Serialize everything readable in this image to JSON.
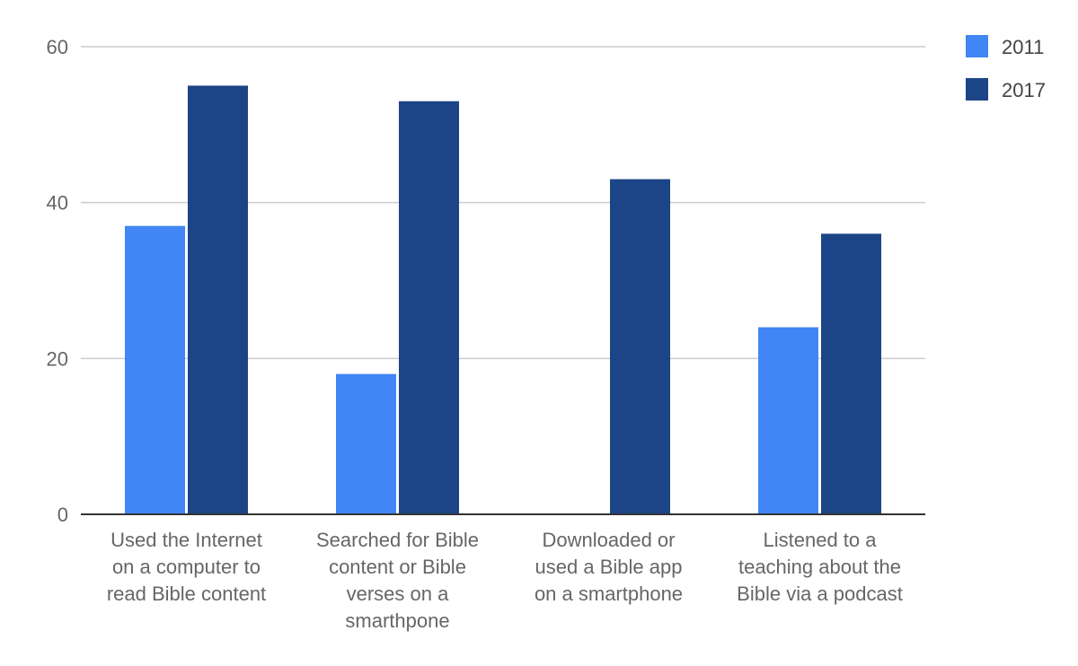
{
  "chart_data": {
    "type": "bar",
    "categories": [
      [
        "Used the Internet",
        "on a computer to",
        "read Bible content"
      ],
      [
        "Searched for Bible",
        "content or Bible",
        "verses on a",
        "smarthpone"
      ],
      [
        "Downloaded or",
        "used a Bible app",
        "on a smartphone"
      ],
      [
        "Listened to a",
        "teaching about the",
        "Bible via a podcast"
      ]
    ],
    "series": [
      {
        "name": "2011",
        "color": "#4285f4",
        "values": [
          37,
          18,
          null,
          24
        ]
      },
      {
        "name": "2017",
        "color": "#1c4587",
        "values": [
          55,
          53,
          43,
          36
        ]
      }
    ],
    "yticks": [
      "0",
      "20",
      "40",
      "60"
    ],
    "ylim": [
      0,
      60
    ],
    "grid": true,
    "legend_position": "right",
    "title": "",
    "xlabel": "",
    "ylabel": ""
  }
}
